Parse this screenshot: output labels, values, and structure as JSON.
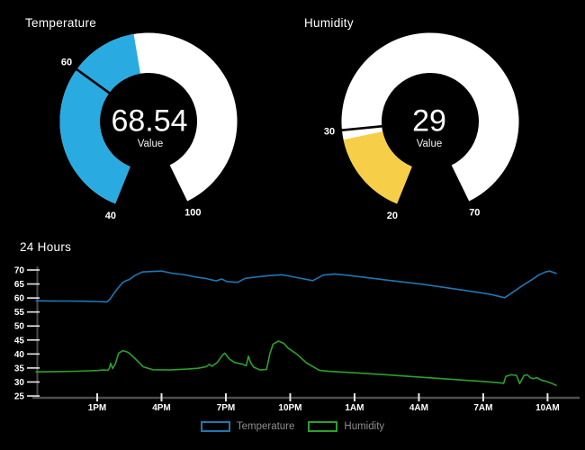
{
  "page": {
    "background": "#000000"
  },
  "chart_data": [
    {
      "type": "gauge",
      "title": "Temperature",
      "value": 68.54,
      "caption": "Value",
      "min": 40,
      "max": 100,
      "threshold": 60,
      "arc_color": "#29abe2",
      "track_color": "#ffffff",
      "threshold_line_color": "#000000"
    },
    {
      "type": "gauge",
      "title": "Humidity",
      "value": 29,
      "caption": "Value",
      "min": 20,
      "max": 70,
      "threshold": 30,
      "arc_color": "#f6ce47",
      "track_color": "#ffffff",
      "threshold_line_color": "#000000"
    },
    {
      "type": "line",
      "title": "24 Hours",
      "ylim": [
        25,
        70
      ],
      "y_ticks": [
        25,
        30,
        35,
        40,
        45,
        50,
        55,
        60,
        65,
        70
      ],
      "x_ticks": [
        {
          "label": "1PM",
          "hour": 3
        },
        {
          "label": "4PM",
          "hour": 6
        },
        {
          "label": "7PM",
          "hour": 9
        },
        {
          "label": "10PM",
          "hour": 12
        },
        {
          "label": "1AM",
          "hour": 15
        },
        {
          "label": "4AM",
          "hour": 18
        },
        {
          "label": "7AM",
          "hour": 21
        },
        {
          "label": "10AM",
          "hour": 24
        }
      ],
      "axis_color": "#4d4d4d",
      "tick_color": "#e8e8e8",
      "legend_text_color": "#8e8e8e",
      "series": [
        {
          "name": "Temperature",
          "color": "#1f77b4",
          "points": [
            [
              0.15,
              59.0
            ],
            [
              0.8,
              58.95
            ],
            [
              1.6,
              58.9
            ],
            [
              2.4,
              58.85
            ],
            [
              3.0,
              58.75
            ],
            [
              3.3,
              58.65
            ],
            [
              3.45,
              58.6
            ],
            [
              3.6,
              59.6
            ],
            [
              3.8,
              61.9
            ],
            [
              4.0,
              63.8
            ],
            [
              4.2,
              65.6
            ],
            [
              4.35,
              66.2
            ],
            [
              4.5,
              66.6
            ],
            [
              4.75,
              68.0
            ],
            [
              5.1,
              69.3
            ],
            [
              5.6,
              69.5
            ],
            [
              6.0,
              69.6
            ],
            [
              6.45,
              68.9
            ],
            [
              7.0,
              68.4
            ],
            [
              7.6,
              67.5
            ],
            [
              8.1,
              66.9
            ],
            [
              8.55,
              66.1
            ],
            [
              8.8,
              66.8
            ],
            [
              9.05,
              65.9
            ],
            [
              9.35,
              65.7
            ],
            [
              9.55,
              65.6
            ],
            [
              9.9,
              67.0
            ],
            [
              10.4,
              67.5
            ],
            [
              11.05,
              68.0
            ],
            [
              11.6,
              68.3
            ],
            [
              11.9,
              67.9
            ],
            [
              12.3,
              67.3
            ],
            [
              13.05,
              66.2
            ],
            [
              13.55,
              68.2
            ],
            [
              14.1,
              68.6
            ],
            [
              14.8,
              68.0
            ],
            [
              16.5,
              66.4
            ],
            [
              18.2,
              64.9
            ],
            [
              19.9,
              63.0
            ],
            [
              21.3,
              61.4
            ],
            [
              22.0,
              60.1
            ],
            [
              22.5,
              62.7
            ],
            [
              22.9,
              64.8
            ],
            [
              23.3,
              66.7
            ],
            [
              23.6,
              68.3
            ],
            [
              23.9,
              69.3
            ],
            [
              24.1,
              69.6
            ],
            [
              24.4,
              68.8
            ]
          ]
        },
        {
          "name": "Humidity",
          "color": "#2ca02c",
          "points": [
            [
              0.15,
              33.6
            ],
            [
              1.0,
              33.7
            ],
            [
              2.0,
              33.85
            ],
            [
              2.6,
              34.0
            ],
            [
              3.0,
              34.1
            ],
            [
              3.3,
              34.3
            ],
            [
              3.5,
              34.2
            ],
            [
              3.57,
              35.0
            ],
            [
              3.63,
              36.7
            ],
            [
              3.72,
              34.8
            ],
            [
              3.85,
              36.5
            ],
            [
              4.0,
              40.3
            ],
            [
              4.2,
              41.2
            ],
            [
              4.45,
              40.6
            ],
            [
              4.75,
              38.5
            ],
            [
              5.15,
              35.4
            ],
            [
              5.6,
              34.4
            ],
            [
              6.4,
              34.3
            ],
            [
              7.2,
              34.6
            ],
            [
              7.7,
              34.9
            ],
            [
              8.1,
              35.5
            ],
            [
              8.22,
              36.3
            ],
            [
              8.35,
              35.6
            ],
            [
              8.6,
              37.0
            ],
            [
              8.85,
              39.7
            ],
            [
              8.95,
              40.3
            ],
            [
              9.15,
              38.3
            ],
            [
              9.4,
              37.0
            ],
            [
              9.8,
              36.3
            ],
            [
              9.95,
              35.8
            ],
            [
              10.05,
              39.2
            ],
            [
              10.15,
              37.0
            ],
            [
              10.3,
              35.3
            ],
            [
              10.6,
              34.3
            ],
            [
              10.9,
              34.5
            ],
            [
              11.05,
              40.0
            ],
            [
              11.2,
              43.5
            ],
            [
              11.45,
              44.6
            ],
            [
              11.7,
              43.8
            ],
            [
              11.9,
              42.1
            ],
            [
              12.3,
              40.0
            ],
            [
              12.75,
              36.9
            ],
            [
              13.35,
              34.2
            ],
            [
              13.8,
              33.8
            ],
            [
              15.0,
              33.3
            ],
            [
              16.5,
              32.6
            ],
            [
              17.9,
              31.8
            ],
            [
              19.6,
              30.9
            ],
            [
              21.0,
              30.2
            ],
            [
              21.8,
              29.7
            ],
            [
              21.95,
              29.5
            ],
            [
              22.05,
              32.0
            ],
            [
              22.3,
              32.6
            ],
            [
              22.55,
              32.4
            ],
            [
              22.7,
              29.4
            ],
            [
              22.9,
              32.3
            ],
            [
              23.05,
              32.6
            ],
            [
              23.2,
              31.5
            ],
            [
              23.35,
              31.2
            ],
            [
              23.5,
              31.6
            ],
            [
              23.7,
              30.7
            ],
            [
              23.95,
              30.2
            ],
            [
              24.2,
              29.5
            ],
            [
              24.4,
              28.8
            ]
          ]
        }
      ]
    }
  ]
}
